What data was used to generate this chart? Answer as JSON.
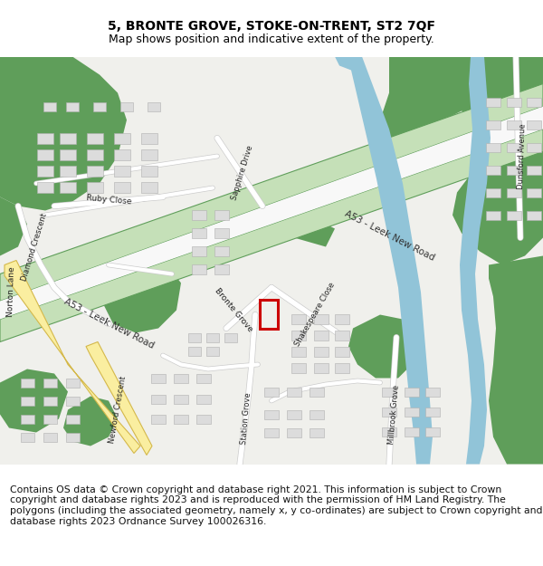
{
  "title_line1": "5, BRONTE GROVE, STOKE-ON-TRENT, ST2 7QF",
  "title_line2": "Map shows position and indicative extent of the property.",
  "footer_text": "Contains OS data © Crown copyright and database right 2021. This information is subject to Crown copyright and database rights 2023 and is reproduced with the permission of HM Land Registry. The polygons (including the associated geometry, namely x, y co-ordinates) are subject to Crown copyright and database rights 2023 Ordnance Survey 100026316.",
  "title_fontsize": 10,
  "subtitle_fontsize": 9,
  "footer_fontsize": 7.8,
  "map_bg": "#f0f0ec",
  "green_dark": "#5f9e5a",
  "green_light": "#c5e0b8",
  "water_blue": "#91c4d8",
  "building_color": "#dcdcdc",
  "building_edge": "#b0b0b0",
  "road_yellow": "#faeea0",
  "road_yellow_edge": "#d4b84a",
  "property_box_color": "#cc0000",
  "title_color": "#000000",
  "road_label_color": "#333333"
}
